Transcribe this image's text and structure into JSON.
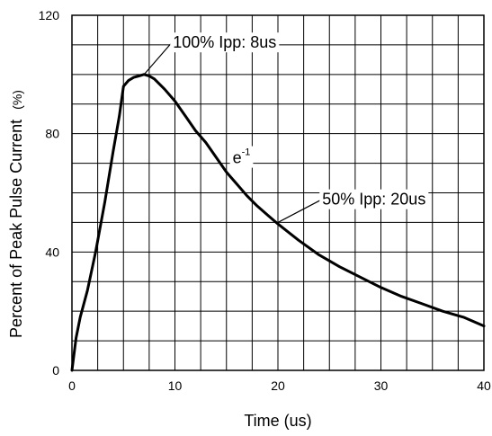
{
  "chart_data": {
    "type": "line",
    "title": "",
    "xlabel": "Time (us)",
    "ylabel": "Percent of Peak Pulse Current",
    "ylabel_unit": "(%)",
    "xlim": [
      0,
      40
    ],
    "ylim": [
      0,
      120
    ],
    "x_ticks": [
      0,
      10,
      20,
      30,
      40
    ],
    "y_ticks": [
      0,
      40,
      80,
      120
    ],
    "x_grid_step": 2.5,
    "y_grid_step": 10,
    "grid": true,
    "legend": "none",
    "line_color": "#000000",
    "series": [
      {
        "x": [
          0,
          0.4,
          0.8,
          1.5,
          2.3,
          3.2,
          4.0,
          4.6,
          5.0,
          5.5,
          6.0,
          6.5,
          7.0,
          7.5,
          8.0,
          9.0,
          10.0,
          11.0,
          12.0,
          13.0,
          14.0,
          15.0,
          16.0,
          17.0,
          18.0,
          19.0,
          20.0,
          22.0,
          24.0,
          26.0,
          28.0,
          30.0,
          32.0,
          34.0,
          36.0,
          38.0,
          40.0
        ],
        "y": [
          0,
          11,
          18,
          27,
          40,
          57,
          74,
          86,
          96,
          98,
          99,
          99.5,
          100,
          99.5,
          98.5,
          95,
          91,
          86,
          81,
          77,
          72,
          67,
          63,
          59,
          55.5,
          52.5,
          49.5,
          44,
          39,
          35,
          31.5,
          28,
          25,
          22.5,
          20,
          18,
          15
        ]
      }
    ],
    "annotations": [
      {
        "text": "100% Ipp: 8us",
        "point": [
          7.0,
          100
        ],
        "label_at": [
          9.8,
          109
        ]
      },
      {
        "text": "e",
        "sup": "-1",
        "label_at": [
          15.6,
          70
        ]
      },
      {
        "text": "50% Ipp: 20us",
        "point": [
          20.0,
          50
        ],
        "label_at": [
          24.3,
          56
        ]
      }
    ]
  }
}
